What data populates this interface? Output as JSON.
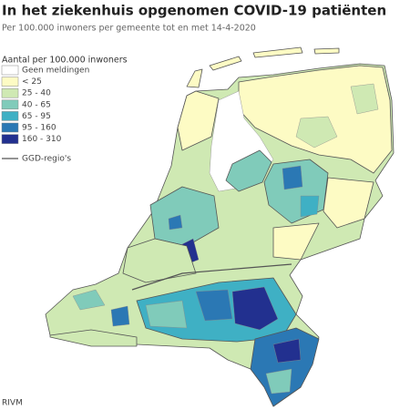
{
  "header": {
    "title": "In het ziekenhuis opgenomen COVID-19 patiënten",
    "subtitle": "Per 100.000 inwoners per gemeente tot en met 14-4-2020"
  },
  "legend": {
    "title": "Aantal per 100.000 inwoners",
    "items": [
      {
        "label": "Geen meldingen",
        "color": "#ffffff"
      },
      {
        "label": "< 25",
        "color": "#fdfbc4"
      },
      {
        "label": "25 - 40",
        "color": "#cfe9b3"
      },
      {
        "label": "40 - 65",
        "color": "#80cbba"
      },
      {
        "label": "65 - 95",
        "color": "#3fb0c4"
      },
      {
        "label": "95 - 160",
        "color": "#2b78b4"
      },
      {
        "label": "160 - 310",
        "color": "#22308f"
      }
    ],
    "boundary": {
      "label": "GGD-regio's",
      "color": "#555555"
    }
  },
  "source": "RIVM"
}
